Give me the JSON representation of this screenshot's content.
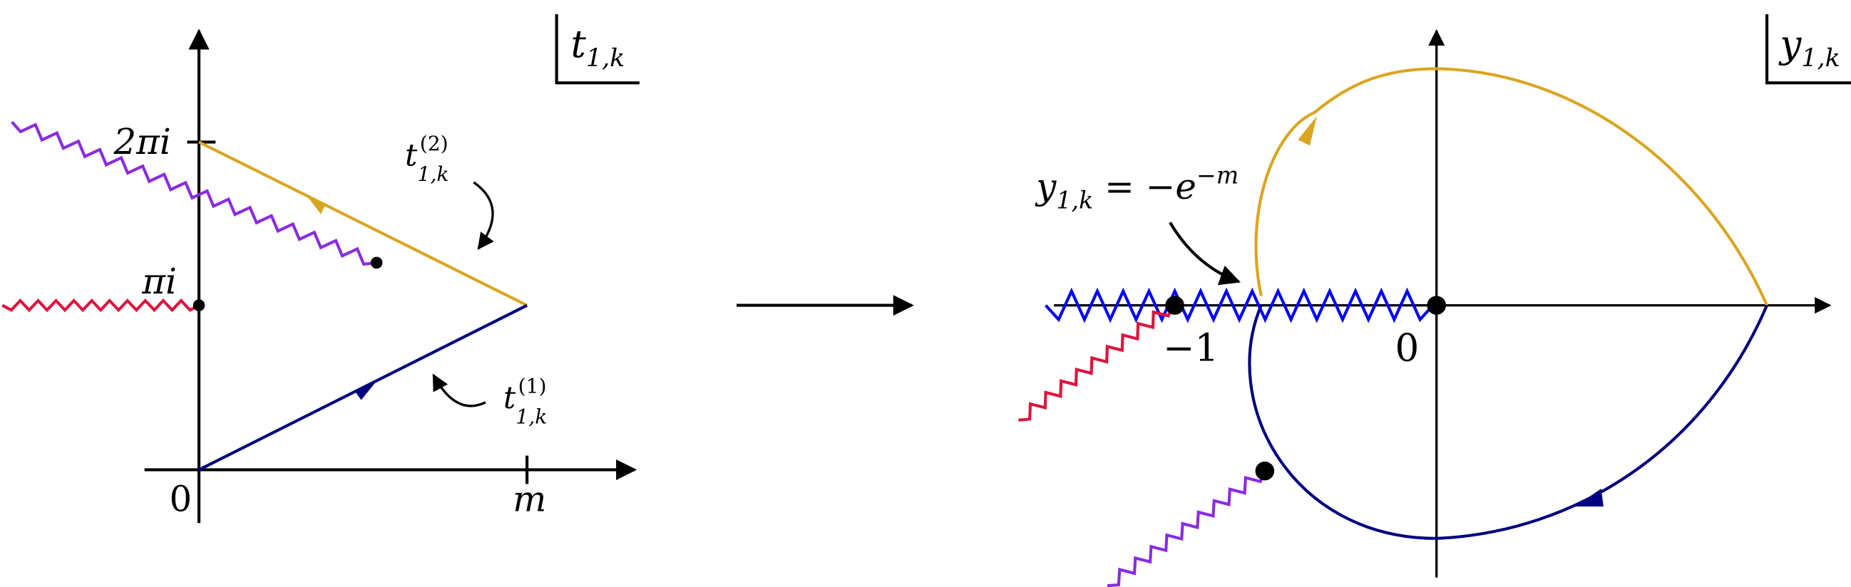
{
  "left_panel": {
    "box_label": {
      "base": "t",
      "sub": "1,k"
    },
    "y_labels": [
      "2πi",
      "πi"
    ],
    "origin_label": "0",
    "x_label": "m",
    "path_labels": [
      {
        "base": "t",
        "sup": "(2)",
        "sub": "1,k"
      },
      {
        "base": "t",
        "sup": "(1)",
        "sub": "1,k"
      }
    ]
  },
  "right_panel": {
    "box_label": {
      "base": "y",
      "sub": "1,k"
    },
    "equation": {
      "base": "y",
      "sub": "1,k",
      "rhs": " = −e",
      "sup": "−m"
    },
    "point_labels": [
      "−1",
      "0"
    ]
  }
}
